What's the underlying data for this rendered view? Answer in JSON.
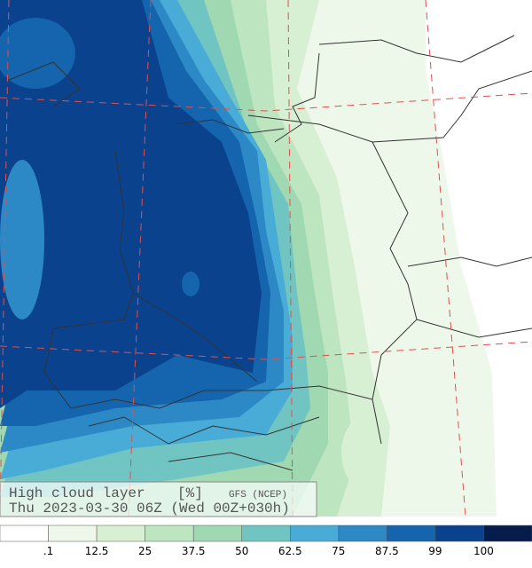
{
  "header": {
    "title": "High cloud layer",
    "unit": "[%]",
    "model": "GFS (NCEP)",
    "valid_time": "Thu 2023-03-30 06Z (Wed 00Z+030h)"
  },
  "legend": {
    "colors": [
      "#ffffff",
      "#eef8ea",
      "#d7efd2",
      "#bde5bf",
      "#9fd8b1",
      "#70c5c3",
      "#48acd6",
      "#2c89c6",
      "#1464ae",
      "#0b428e",
      "#061d4c"
    ],
    "labels": [
      ".1",
      "12.5",
      "25",
      "37.5",
      "50",
      "62.5",
      "75",
      "87.5",
      "99",
      "100"
    ]
  }
}
